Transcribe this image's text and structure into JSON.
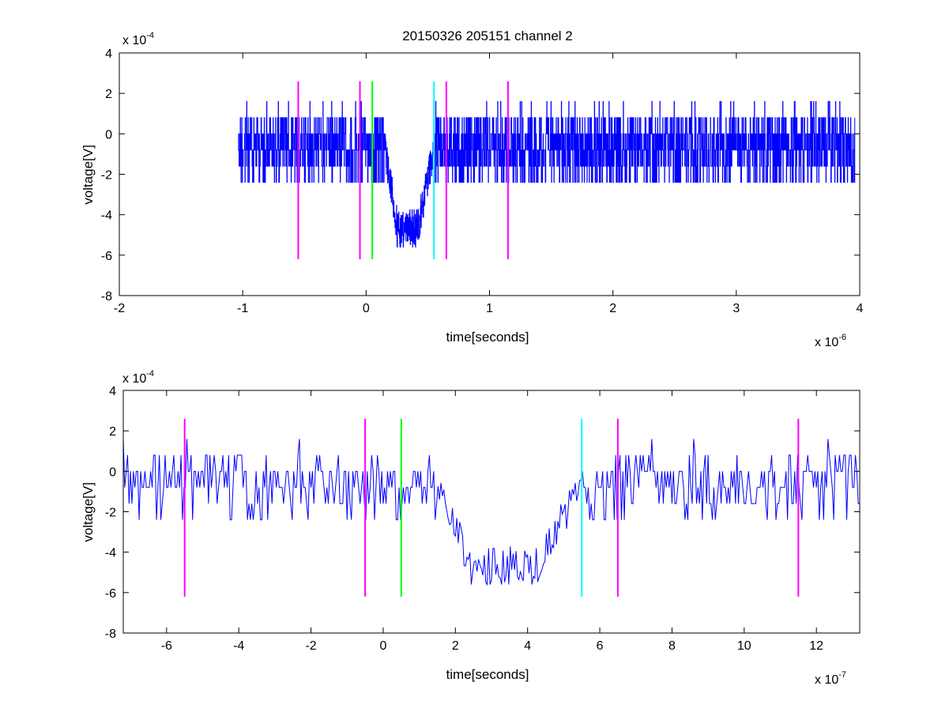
{
  "figure": {
    "title": "20150326 205151 channel 2"
  },
  "colors": {
    "signal": "#0000ff",
    "marker_magenta": "#ff00ff",
    "marker_green": "#00ff00",
    "marker_cyan": "#00ffff",
    "axes": "#000000",
    "background": "#ffffff"
  },
  "chart_data": [
    {
      "type": "line",
      "xlabel": "time[seconds]",
      "ylabel": "voltage[V]",
      "x_exponent_base": "x 10",
      "x_exponent_power": "-6",
      "y_exponent_base": "x 10",
      "y_exponent_power": "-4",
      "xlim": [
        -2e-06,
        4e-06
      ],
      "ylim": [
        -0.0008,
        0.0004
      ],
      "x_ticks": [
        -2e-06,
        -1e-06,
        0,
        1e-06,
        2e-06,
        3e-06,
        4e-06
      ],
      "x_tick_labels": [
        "-2",
        "-1",
        "0",
        "1",
        "2",
        "3",
        "4"
      ],
      "y_ticks": [
        -0.0008,
        -0.0006,
        -0.0004,
        -0.0002,
        0,
        0.0002,
        0.0004
      ],
      "y_tick_labels": [
        "-8",
        "-6",
        "-4",
        "-2",
        "0",
        "2",
        "4"
      ],
      "grid": false,
      "series": [
        {
          "color": "#0000ff",
          "x_start": -1.04e-06,
          "x_step": 2e-09,
          "baseline_levels": [
            8e-05,
            0,
            -8e-05,
            -0.00016,
            -0.00024
          ],
          "noise_envelope": [
            -0.00024,
            0.00016
          ],
          "dip": {
            "start": 1.5e-07,
            "bottom_start": 2.5e-07,
            "bottom_end": 4.2e-07,
            "end": 5.5e-07,
            "level": -0.00046,
            "min": -0.00056
          },
          "x_end": 3.96e-06
        }
      ],
      "markers": [
        {
          "x": -5.5e-07,
          "color": "#ff00ff",
          "ymin": -0.00062,
          "ymax": 0.00026
        },
        {
          "x": -5e-08,
          "color": "#ff00ff",
          "ymin": -0.00062,
          "ymax": 0.00026
        },
        {
          "x": 5e-08,
          "color": "#00ff00",
          "ymin": -0.00062,
          "ymax": 0.00026
        },
        {
          "x": 5.5e-07,
          "color": "#00ffff",
          "ymin": -0.00062,
          "ymax": 0.00026
        },
        {
          "x": 6.5e-07,
          "color": "#ff00ff",
          "ymin": -0.00062,
          "ymax": 0.00026
        },
        {
          "x": 1.15e-06,
          "color": "#ff00ff",
          "ymin": -0.00062,
          "ymax": 0.00026
        }
      ]
    },
    {
      "type": "line",
      "xlabel": "time[seconds]",
      "ylabel": "voltage[V]",
      "x_exponent_base": "x 10",
      "x_exponent_power": "-7",
      "y_exponent_base": "x 10",
      "y_exponent_power": "-4",
      "xlim": [
        -7.2e-07,
        1.32e-06
      ],
      "ylim": [
        -0.0008,
        0.0004
      ],
      "x_ticks": [
        -6e-07,
        -4e-07,
        -2e-07,
        0,
        2e-07,
        4e-07,
        6e-07,
        8e-07,
        1e-06,
        1.2e-06
      ],
      "x_tick_labels": [
        "-6",
        "-4",
        "-2",
        "0",
        "2",
        "4",
        "6",
        "8",
        "10",
        "12"
      ],
      "y_ticks": [
        -0.0008,
        -0.0006,
        -0.0004,
        -0.0002,
        0,
        0.0002,
        0.0004
      ],
      "y_tick_labels": [
        "-8",
        "-6",
        "-4",
        "-2",
        "0",
        "2",
        "4"
      ],
      "grid": false,
      "series": [
        {
          "color": "#0000ff",
          "x_start": -7.2e-07,
          "x_step": 4e-09,
          "baseline_levels": [
            8e-05,
            0,
            -8e-05,
            -0.00016,
            -0.00024
          ],
          "noise_envelope": [
            -0.00024,
            0.00016
          ],
          "dip": {
            "start": 1.5e-07,
            "bottom_start": 2.4e-07,
            "bottom_end": 4.3e-07,
            "end": 5.5e-07,
            "level": -0.00046,
            "min": -0.00056
          },
          "x_end": 1.32e-06
        }
      ],
      "markers": [
        {
          "x": -5.5e-07,
          "color": "#ff00ff",
          "ymin": -0.00062,
          "ymax": 0.00026
        },
        {
          "x": -5e-08,
          "color": "#ff00ff",
          "ymin": -0.00062,
          "ymax": 0.00026
        },
        {
          "x": 5e-08,
          "color": "#00ff00",
          "ymin": -0.00062,
          "ymax": 0.00026
        },
        {
          "x": 5.5e-07,
          "color": "#00ffff",
          "ymin": -0.00062,
          "ymax": 0.00026
        },
        {
          "x": 6.5e-07,
          "color": "#ff00ff",
          "ymin": -0.00062,
          "ymax": 0.00026
        },
        {
          "x": 1.15e-06,
          "color": "#ff00ff",
          "ymin": -0.00062,
          "ymax": 0.00026
        }
      ]
    }
  ]
}
